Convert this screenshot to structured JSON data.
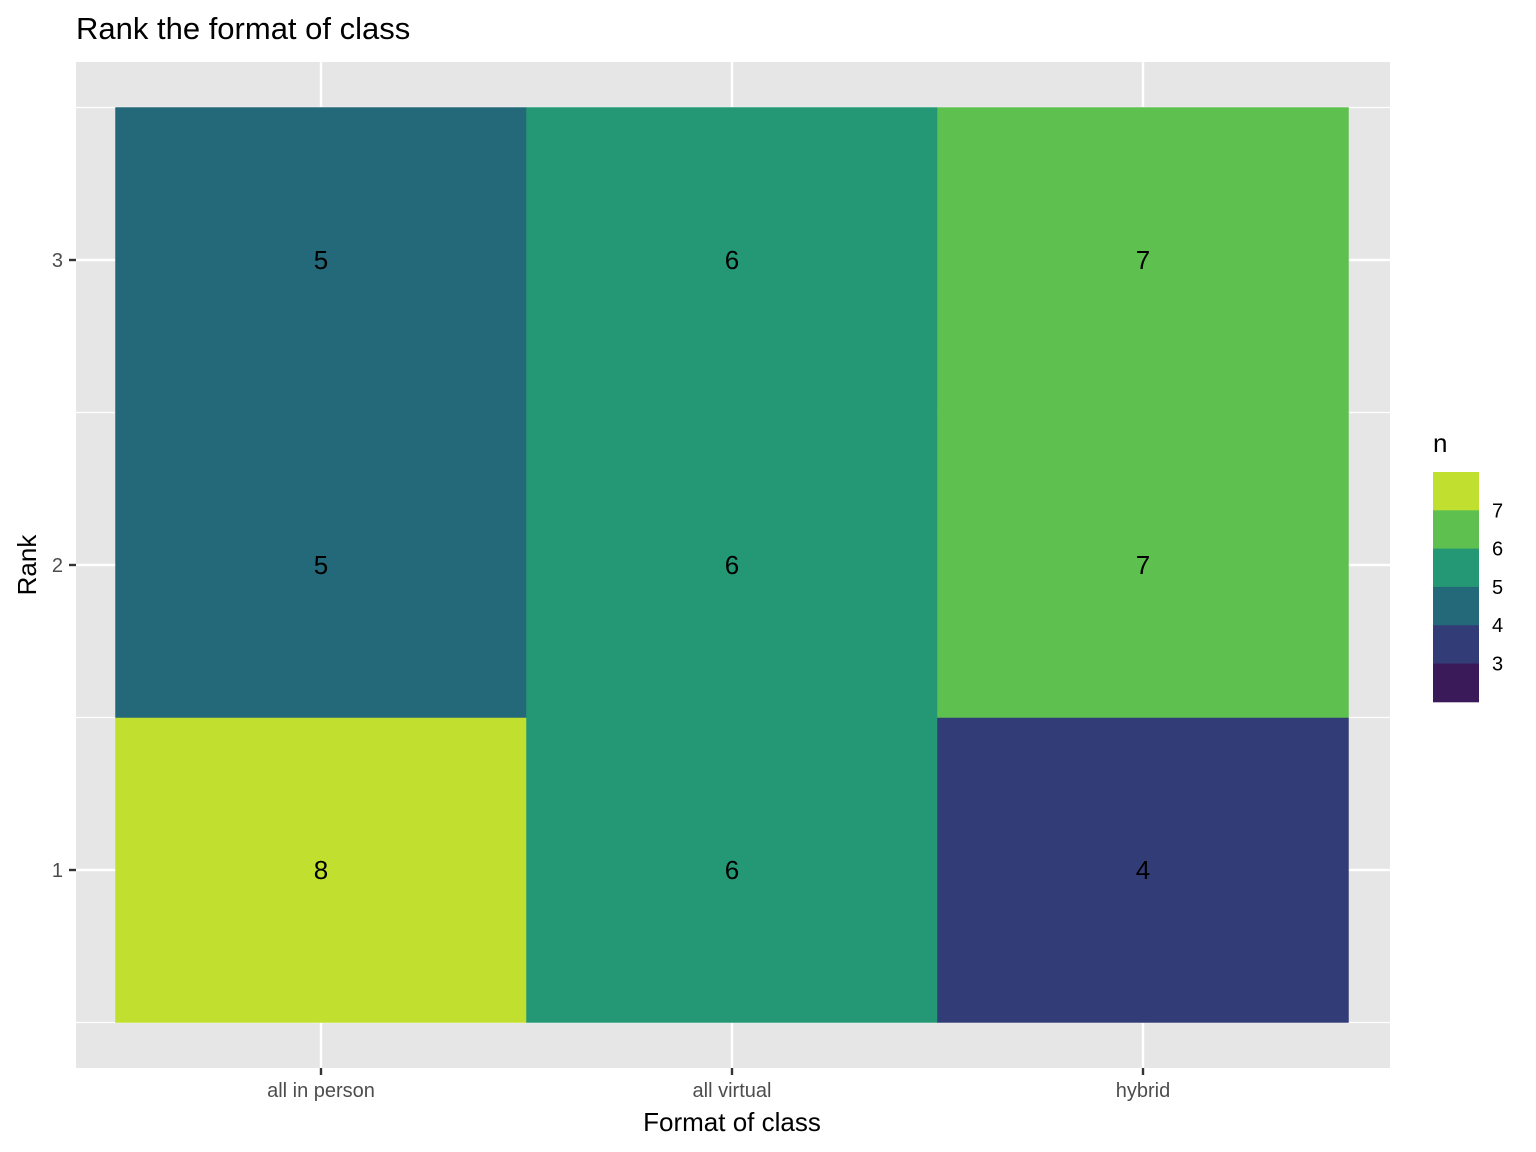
{
  "chart_data": {
    "type": "heatmap",
    "title": "Rank the format of class",
    "xlabel": "Format of class",
    "ylabel": "Rank",
    "x_categories": [
      "all in person",
      "all virtual",
      "hybrid"
    ],
    "y_categories": [
      "1",
      "2",
      "3"
    ],
    "cells": [
      {
        "x": "all in person",
        "y": "1",
        "n": 8
      },
      {
        "x": "all in person",
        "y": "2",
        "n": 5
      },
      {
        "x": "all in person",
        "y": "3",
        "n": 5
      },
      {
        "x": "all virtual",
        "y": "1",
        "n": 6
      },
      {
        "x": "all virtual",
        "y": "2",
        "n": 6
      },
      {
        "x": "all virtual",
        "y": "3",
        "n": 6
      },
      {
        "x": "hybrid",
        "y": "1",
        "n": 4
      },
      {
        "x": "hybrid",
        "y": "2",
        "n": 7
      },
      {
        "x": "hybrid",
        "y": "3",
        "n": 7
      }
    ],
    "cell_colors": {
      "8": "#c0df2f",
      "7": "#5ec04f",
      "6": "#249874",
      "5": "#24697a",
      "4": "#323d78"
    },
    "legend": {
      "title": "n",
      "position": "right",
      "labels": [
        "7",
        "6",
        "5",
        "4",
        "3"
      ],
      "swatches": [
        "#c0df2f",
        "#5ec04f",
        "#249874",
        "#24697a",
        "#323d78",
        "#3b1a59"
      ]
    },
    "grid": true,
    "panel_background": "#e6e6e6"
  }
}
